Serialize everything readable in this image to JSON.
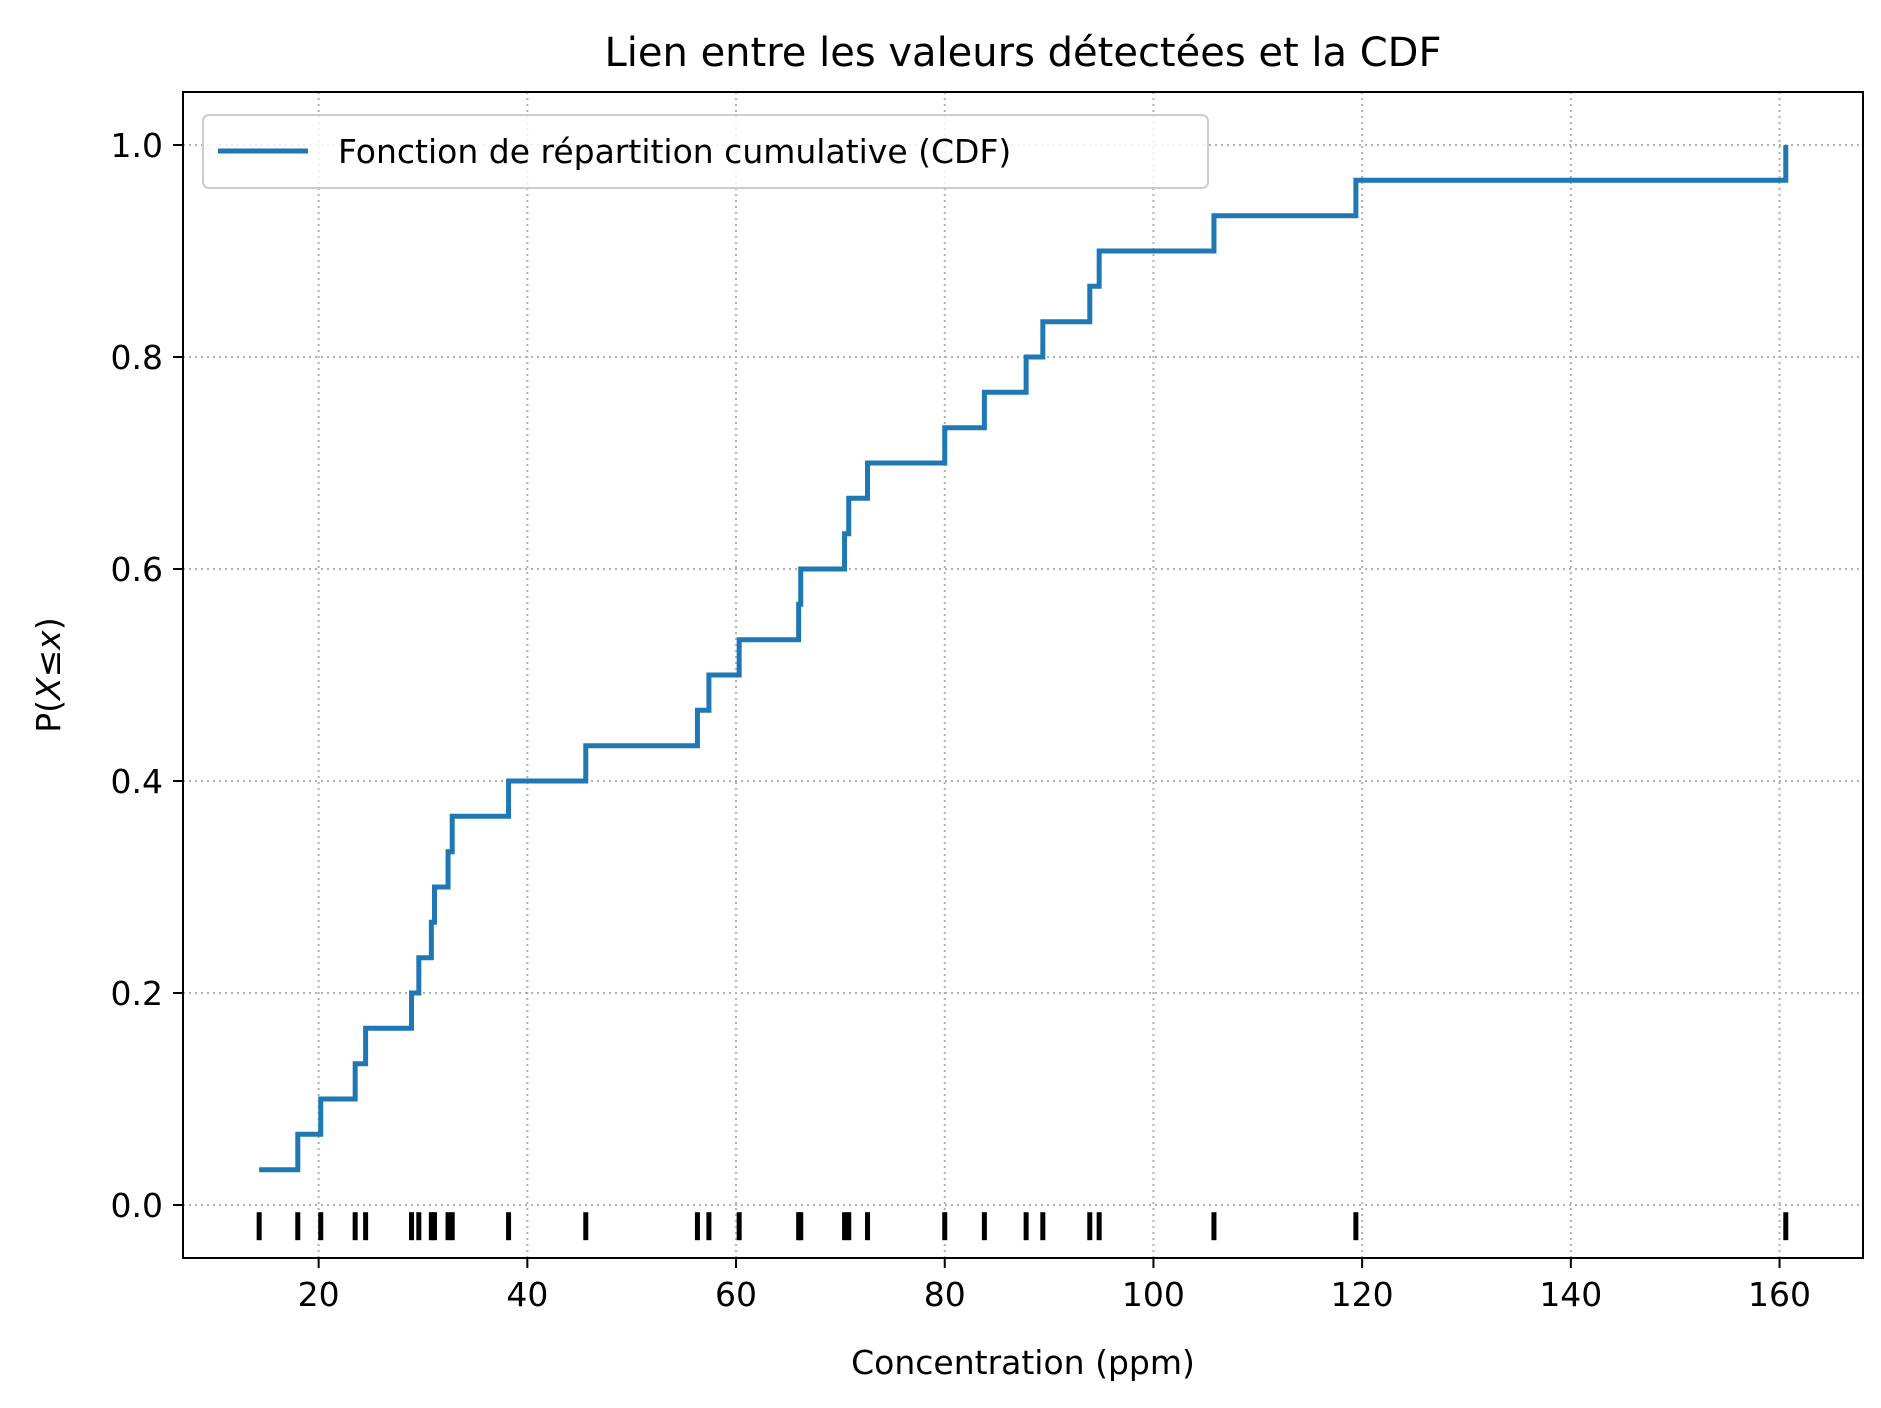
{
  "chart_data": {
    "type": "line",
    "subtype": "step",
    "title": "Lien entre les valeurs détectées et la CDF",
    "xlabel": "Concentration (ppm)",
    "ylabel_parts": [
      "P(",
      "X",
      "≤",
      "x",
      ")"
    ],
    "xlim": [
      7,
      168
    ],
    "ylim": [
      -0.05,
      1.05
    ],
    "xticks": [
      20,
      40,
      60,
      80,
      100,
      120,
      140,
      160
    ],
    "yticks": [
      0.0,
      0.2,
      0.4,
      0.6,
      0.8,
      1.0
    ],
    "xtick_labels": [
      "20",
      "40",
      "60",
      "80",
      "100",
      "120",
      "140",
      "160"
    ],
    "ytick_labels": [
      "0.0",
      "0.2",
      "0.4",
      "0.6",
      "0.8",
      "1.0"
    ],
    "grid": true,
    "legend_position": "top-left",
    "series": [
      {
        "name": "Fonction de répartition cumulative (CDF)",
        "color": "#1f77b4",
        "x": [
          14.3,
          18.0,
          20.2,
          23.5,
          24.5,
          28.9,
          29.6,
          30.8,
          31.1,
          32.4,
          32.8,
          38.2,
          45.6,
          56.3,
          57.4,
          60.3,
          66.0,
          66.2,
          70.4,
          70.8,
          72.6,
          80.0,
          83.8,
          87.8,
          89.4,
          93.9,
          94.8,
          105.8,
          119.4,
          160.6
        ],
        "y": [
          0.0333,
          0.0667,
          0.1,
          0.1333,
          0.1667,
          0.2,
          0.2333,
          0.2667,
          0.3,
          0.3333,
          0.3667,
          0.4,
          0.4333,
          0.4667,
          0.5,
          0.5333,
          0.5667,
          0.6,
          0.6333,
          0.6667,
          0.7,
          0.7333,
          0.7667,
          0.8,
          0.8333,
          0.8667,
          0.9,
          0.9333,
          0.9667,
          1.0
        ]
      }
    ],
    "rug": {
      "color": "#000000",
      "y": -0.02,
      "x": [
        14.3,
        18.0,
        20.2,
        23.5,
        24.5,
        28.9,
        29.6,
        30.8,
        31.1,
        32.4,
        32.8,
        38.2,
        45.6,
        56.3,
        57.4,
        60.3,
        66.0,
        66.2,
        70.4,
        70.8,
        72.6,
        80.0,
        83.8,
        87.8,
        89.4,
        93.9,
        94.8,
        105.8,
        119.4,
        160.6
      ]
    }
  }
}
